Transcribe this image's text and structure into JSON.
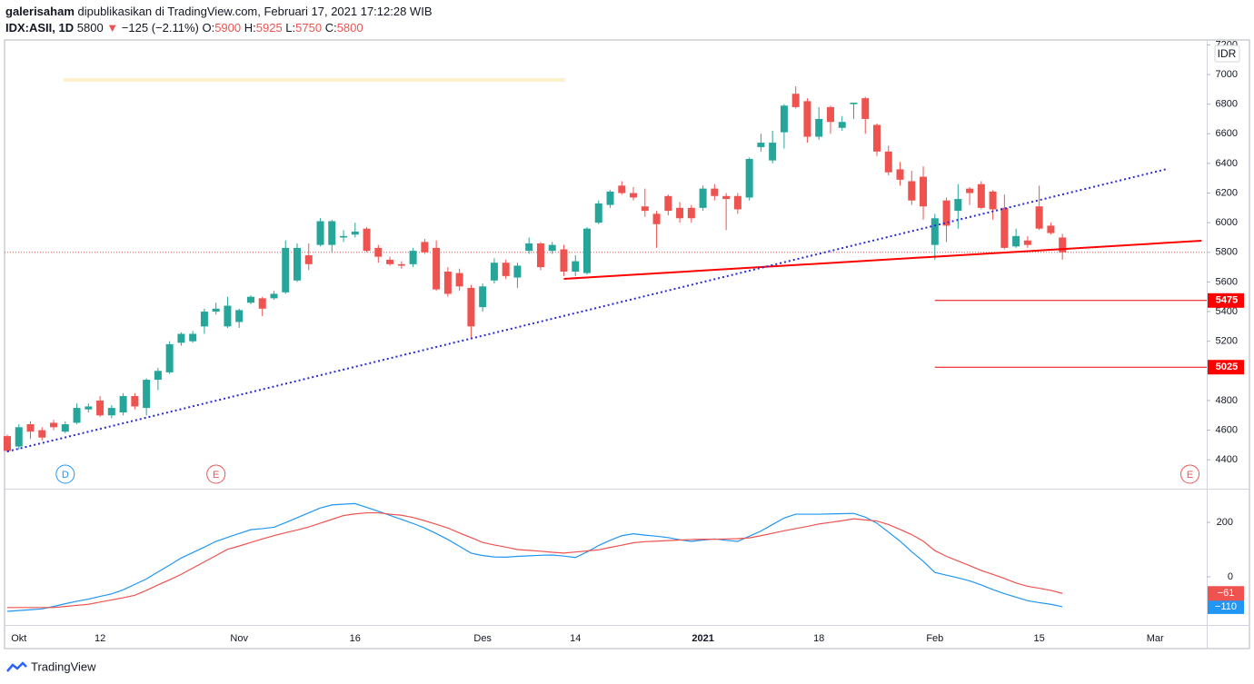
{
  "chart_data": {
    "type": "candlestick",
    "author": "galerisaham",
    "published": "dipublikasikan di TradingView.com, Februari 17, 2021 17:12:28 WIB",
    "symbol": "IDX:ASII, 1D",
    "arrow": "▼",
    "change_label": "−125 (−2.11%)",
    "o_label": "O:",
    "h_label": "H:",
    "l_label": "L:",
    "c_label": "C:",
    "currency": "IDR",
    "brand": "TradingView",
    "up_color": "#26a69a",
    "down_color": "#ef5350",
    "categories": [
      null,
      "Okt",
      null,
      null,
      null,
      null,
      null,
      null,
      "12",
      null,
      null,
      null,
      null,
      null,
      null,
      null,
      null,
      null,
      null,
      null,
      "Nov",
      null,
      null,
      null,
      null,
      null,
      null,
      null,
      null,
      null,
      "16",
      null,
      null,
      null,
      null,
      null,
      null,
      null,
      null,
      null,
      null,
      "Des",
      null,
      null,
      null,
      null,
      null,
      null,
      null,
      "14",
      null,
      null,
      null,
      null,
      null,
      null,
      null,
      null,
      null,
      null,
      "2021",
      null,
      null,
      null,
      null,
      null,
      null,
      null,
      null,
      null,
      "18",
      null,
      null,
      null,
      null,
      null,
      null,
      null,
      null,
      null,
      "Feb",
      null,
      null,
      null,
      null,
      null,
      null,
      null,
      null,
      "15",
      null,
      null,
      null,
      null,
      null,
      null,
      null,
      null,
      null,
      "Mar",
      null,
      null,
      null,
      null
    ],
    "open": [
      4560,
      4490,
      4640,
      4600,
      4650,
      4590,
      4650,
      4740,
      4800,
      4700,
      4720,
      4830,
      4750,
      4940,
      4990,
      5190,
      5200,
      5300,
      5400,
      5300,
      5330,
      5460,
      5490,
      5490,
      5530,
      5610,
      5780,
      5850,
      5850,
      5900,
      5920,
      5960,
      5830,
      5750,
      5720,
      5720,
      5870,
      5830,
      5670,
      5660,
      5560,
      5430,
      5610,
      5730,
      5630,
      5810,
      5860,
      5810,
      5820,
      5670,
      5660,
      6000,
      6120,
      6250,
      6200,
      6110,
      6060,
      6180,
      6100,
      6100,
      6100,
      6230,
      6180,
      6180,
      6170,
      6510,
      6420,
      6610,
      6870,
      6820,
      6580,
      6780,
      6640,
      6800,
      6840,
      6660,
      6480,
      6360,
      6280,
      6310,
      5850,
      6150,
      6080,
      6230,
      6260,
      6210,
      6100,
      5840,
      5880,
      6110,
      5980,
      5900,
      null,
      null,
      null,
      null,
      null,
      null,
      null,
      null,
      null,
      null,
      null,
      null
    ],
    "high": [
      4570,
      4640,
      4660,
      4620,
      4670,
      4660,
      4780,
      4780,
      4830,
      4770,
      4850,
      4850,
      4950,
      5020,
      5200,
      5260,
      5270,
      5420,
      5460,
      5500,
      5420,
      5510,
      5500,
      5540,
      5880,
      5860,
      5860,
      6030,
      6020,
      5950,
      6000,
      5970,
      5850,
      5770,
      5740,
      5830,
      5890,
      5880,
      5700,
      5690,
      5580,
      5590,
      5760,
      5750,
      5730,
      5900,
      5870,
      5870,
      5850,
      5780,
      5970,
      6150,
      6220,
      6280,
      6240,
      6230,
      6080,
      6190,
      6140,
      6120,
      6250,
      6260,
      6200,
      6200,
      6440,
      6600,
      6620,
      6800,
      6920,
      6840,
      6780,
      6790,
      6720,
      6810,
      6850,
      6670,
      6520,
      6410,
      6350,
      6380,
      6060,
      6170,
      6260,
      6240,
      6280,
      6220,
      6190,
      5960,
      5910,
      6250,
      6000,
      5925,
      null,
      null,
      null,
      null,
      null,
      null,
      null,
      null,
      null,
      null,
      null,
      null
    ],
    "low": [
      4450,
      4470,
      4540,
      4530,
      4600,
      4580,
      4640,
      4720,
      4690,
      4680,
      4700,
      4740,
      4700,
      4870,
      4980,
      5170,
      5190,
      5250,
      5380,
      5290,
      5290,
      5450,
      5370,
      5480,
      5520,
      5600,
      5680,
      5840,
      5800,
      5870,
      5900,
      5800,
      5730,
      5710,
      5690,
      5700,
      5790,
      5540,
      5500,
      5540,
      5220,
      5400,
      5590,
      5620,
      5560,
      5790,
      5680,
      5790,
      5640,
      5640,
      5650,
      5990,
      6100,
      6190,
      6150,
      6040,
      5830,
      6050,
      6000,
      6000,
      6080,
      6150,
      5950,
      6060,
      6150,
      6480,
      6400,
      6500,
      6770,
      6540,
      6560,
      6600,
      6620,
      6700,
      6600,
      6450,
      6320,
      6250,
      6120,
      6020,
      5750,
      5870,
      5960,
      6120,
      6090,
      6020,
      5820,
      5830,
      5830,
      5950,
      5920,
      5750,
      null,
      null,
      null,
      null,
      null,
      null,
      null,
      null,
      null,
      null,
      null,
      null
    ],
    "close": [
      4460,
      4620,
      4590,
      4550,
      4620,
      4640,
      4750,
      4760,
      4700,
      4750,
      4830,
      4760,
      4940,
      5000,
      5180,
      5250,
      5250,
      5400,
      5420,
      5440,
      5410,
      5500,
      5420,
      5520,
      5830,
      5830,
      5720,
      6010,
      6010,
      5910,
      5940,
      5810,
      5770,
      5720,
      5710,
      5810,
      5800,
      5550,
      5520,
      5570,
      5300,
      5570,
      5730,
      5640,
      5710,
      5860,
      5700,
      5850,
      5670,
      5740,
      5960,
      6130,
      6210,
      6200,
      6170,
      6080,
      5990,
      6080,
      6030,
      6030,
      6230,
      6180,
      6160,
      6090,
      6430,
      6540,
      6540,
      6790,
      6780,
      6580,
      6700,
      6680,
      6680,
      6810,
      6700,
      6480,
      6340,
      6290,
      6150,
      6110,
      6030,
      5980,
      6160,
      6200,
      6100,
      6090,
      5830,
      5910,
      5850,
      5960,
      5930,
      5800,
      null,
      null,
      null,
      null,
      null,
      null,
      null,
      null,
      null,
      null,
      null,
      null
    ],
    "ylim": [
      4205,
      7233
    ],
    "yticks": [
      4400,
      4600,
      4800,
      5000,
      5200,
      5400,
      5600,
      5800,
      6000,
      6200,
      6400,
      6600,
      6800,
      7000,
      7200
    ],
    "levels": [
      {
        "value": 5475,
        "start": 80,
        "color": "#f00000"
      },
      {
        "value": 5025,
        "start": 80,
        "color": "#f00000"
      }
    ],
    "trendlines": [
      {
        "color": "#ff0000",
        "style": "solid",
        "x": [
          48,
          103
        ],
        "y": [
          5621,
          5878
        ]
      },
      {
        "color": "#2a2ad8",
        "style": "dotted",
        "x": [
          0,
          100
        ],
        "y": [
          4456,
          6362
        ]
      }
    ],
    "events": [
      {
        "label": "D",
        "index": 5,
        "color": "#2196f3"
      },
      {
        "label": "E",
        "index": 18,
        "color": "#ef5350"
      },
      {
        "label": "E",
        "index": 102,
        "color": "#ef5350"
      }
    ],
    "macd": {
      "y2lim": [
        -177,
        317
      ],
      "y2ticks": [
        0,
        200
      ],
      "series": [
        {
          "name": "MACD",
          "color": "#2196f3",
          "axis": "y2",
          "last_label": "−110",
          "values": [
            -127,
            -124,
            -121,
            -118,
            -109,
            -99,
            -90,
            -82,
            -72,
            -63,
            -48,
            -28,
            -8,
            18,
            43,
            69,
            89,
            109,
            130,
            145,
            159,
            173,
            177,
            182,
            199,
            217,
            235,
            253,
            264,
            267,
            269,
            255,
            241,
            226,
            211,
            196,
            179,
            159,
            137,
            112,
            87,
            78,
            73,
            72,
            75,
            77,
            79,
            80,
            76,
            71,
            91,
            115,
            134,
            151,
            158,
            153,
            149,
            144,
            136,
            130,
            135,
            139,
            134,
            130,
            149,
            168,
            192,
            216,
            230,
            230,
            230,
            231,
            232,
            233,
            219,
            197,
            164,
            131,
            92,
            57,
            16,
            6,
            -4,
            -15,
            -30,
            -47,
            -62,
            -75,
            -88,
            -95,
            -101,
            -110,
            null,
            null,
            null,
            null,
            null,
            null,
            null,
            null,
            null,
            null,
            null,
            null
          ]
        },
        {
          "name": "Signal",
          "color": "#ef5350",
          "axis": "y2",
          "last_label": "−61",
          "values": [
            -113,
            -113,
            -113,
            -113,
            -113,
            -109,
            -105,
            -101,
            -93,
            -85,
            -77,
            -68,
            -50,
            -30,
            -11,
            9,
            32,
            55,
            78,
            101,
            113,
            126,
            139,
            151,
            162,
            172,
            183,
            197,
            211,
            225,
            231,
            235,
            235,
            230,
            226,
            218,
            206,
            193,
            179,
            161,
            144,
            126,
            117,
            109,
            100,
            97,
            94,
            90,
            87,
            91,
            95,
            99,
            108,
            116,
            125,
            129,
            131,
            133,
            135,
            137,
            138,
            138,
            139,
            140,
            143,
            151,
            160,
            169,
            177,
            185,
            194,
            200,
            206,
            213,
            209,
            205,
            192,
            174,
            155,
            131,
            96,
            75,
            58,
            41,
            23,
            9,
            -6,
            -23,
            -35,
            -42,
            -50,
            -61,
            null,
            null,
            null,
            null,
            null,
            null,
            null,
            null,
            null,
            null,
            null,
            null
          ]
        }
      ]
    }
  }
}
